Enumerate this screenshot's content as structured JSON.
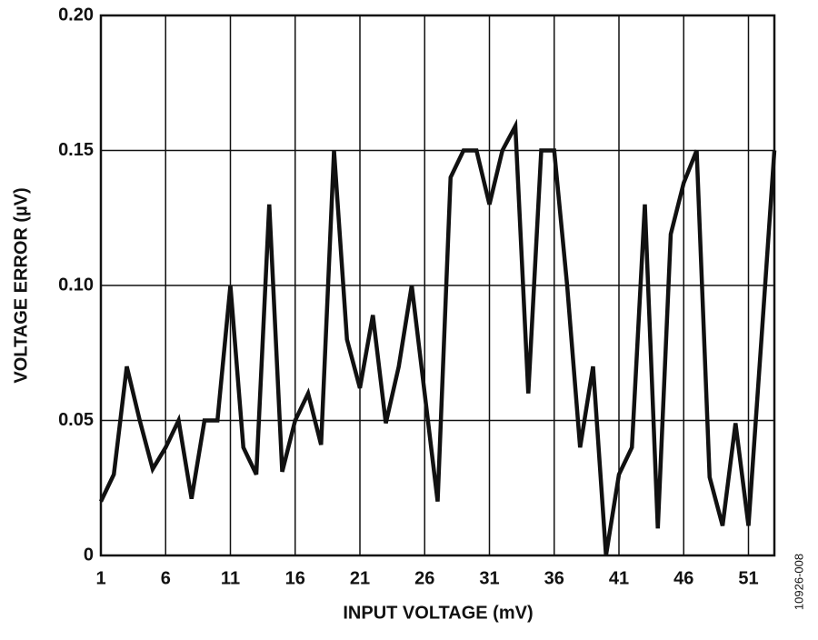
{
  "chart_data": {
    "type": "line",
    "x_label": "INPUT VOLTAGE (mV)",
    "y_label": "VOLTAGE ERROR (µV)",
    "figure_id": "10926-008",
    "x": [
      1,
      2,
      3,
      4,
      5,
      6,
      7,
      8,
      9,
      10,
      11,
      12,
      13,
      14,
      15,
      16,
      17,
      18,
      19,
      20,
      21,
      22,
      23,
      24,
      25,
      26,
      27,
      28,
      29,
      30,
      31,
      32,
      33,
      34,
      35,
      36,
      37,
      38,
      39,
      40,
      41,
      42,
      43,
      44,
      45,
      46,
      47,
      48,
      49,
      50,
      51,
      52,
      53
    ],
    "series": [
      {
        "color": "#111111",
        "values": [
          0.02,
          0.03,
          0.07,
          0.05,
          0.032,
          0.04,
          0.05,
          0.021,
          0.05,
          0.05,
          0.1,
          0.04,
          0.03,
          0.13,
          0.031,
          0.05,
          0.06,
          0.041,
          0.15,
          0.08,
          0.062,
          0.089,
          0.049,
          0.07,
          0.1,
          0.06,
          0.02,
          0.14,
          0.15,
          0.15,
          0.13,
          0.15,
          0.159,
          0.06,
          0.15,
          0.15,
          0.1,
          0.04,
          0.07,
          0.0,
          0.03,
          0.04,
          0.13,
          0.01,
          0.119,
          0.138,
          0.15,
          0.029,
          0.011,
          0.049,
          0.011,
          0.08,
          0.15
        ]
      }
    ],
    "xlim": [
      1,
      53
    ],
    "xticks": [
      1,
      6,
      11,
      16,
      21,
      26,
      31,
      36,
      41,
      46,
      51
    ],
    "ylim": [
      0,
      0.2
    ],
    "yticks": [
      0,
      0.05,
      {
        "value": 0.1,
        "label": "0.10"
      },
      0.15,
      {
        "value": 0.2,
        "label": "0.20"
      }
    ],
    "grid": true
  }
}
